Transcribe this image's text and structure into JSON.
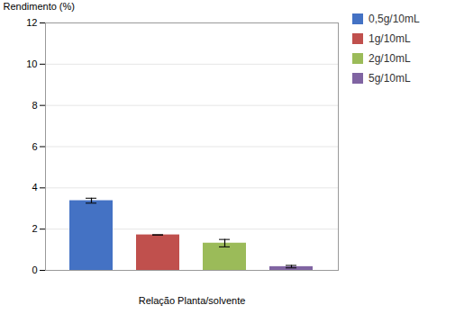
{
  "chart_data": {
    "type": "bar",
    "categories": [
      "0,5g/10mL",
      "1g/10mL",
      "2g/10mL",
      "5g/10mL"
    ],
    "values": [
      3.38,
      1.72,
      1.32,
      0.18
    ],
    "errors": [
      0.12,
      0.0,
      0.18,
      0.06
    ],
    "colors": [
      "#4472C4",
      "#C0504D",
      "#9BBB59",
      "#8064A2"
    ],
    "ylabel": "Rendimento (%)",
    "xlabel": "Relação Planta/solvente",
    "ylim": [
      0,
      12
    ],
    "yticks": [
      0,
      2,
      4,
      6,
      8,
      10,
      12
    ],
    "grid": true,
    "legend": "upper right",
    "tick_labels": "y"
  }
}
